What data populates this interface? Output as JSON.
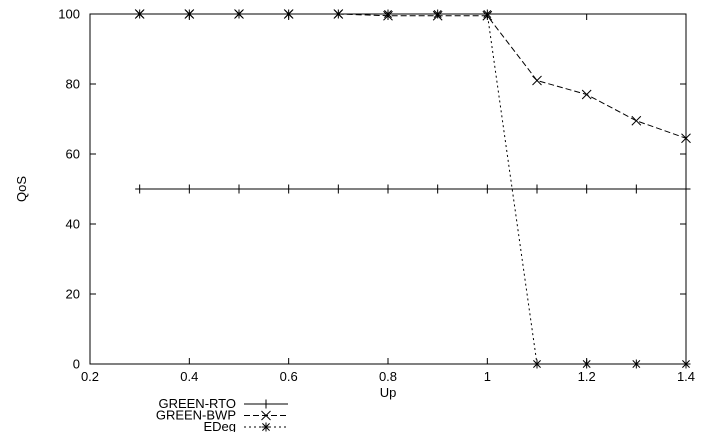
{
  "chart_data": {
    "type": "line",
    "title": "",
    "xlabel": "Up",
    "ylabel": "QoS",
    "xlim": [
      0.2,
      1.4
    ],
    "ylim": [
      0,
      100
    ],
    "xticks": [
      "0.2",
      "0.4",
      "0.6",
      "0.8",
      "1",
      "1.2",
      "1.4"
    ],
    "yticks": [
      "0",
      "20",
      "40",
      "60",
      "80",
      "100"
    ],
    "grid": false,
    "legend_position": "bottom-left outside",
    "series": [
      {
        "name": "GREEN-RTO",
        "marker": "plus",
        "line_style": "solid",
        "color": "#000000",
        "x": [
          0.3,
          0.4,
          0.5,
          0.6,
          0.7,
          0.8,
          0.9,
          1.0,
          1.1,
          1.2,
          1.3,
          1.4
        ],
        "y": [
          50,
          50,
          50,
          50,
          50,
          50,
          50,
          50,
          50,
          50,
          50,
          50
        ]
      },
      {
        "name": "GREEN-BWP",
        "marker": "cross",
        "line_style": "dashed",
        "color": "#000000",
        "x": [
          0.3,
          0.4,
          0.5,
          0.6,
          0.7,
          0.8,
          0.9,
          1.0,
          1.1,
          1.2,
          1.3,
          1.4
        ],
        "y": [
          100,
          100,
          100,
          100,
          100,
          99.5,
          99.5,
          99.5,
          81,
          77,
          69.5,
          64.5
        ]
      },
      {
        "name": "EDeg",
        "marker": "star",
        "line_style": "dotted",
        "color": "#000000",
        "x": [
          0.3,
          0.4,
          0.5,
          0.6,
          0.7,
          0.8,
          0.9,
          1.0,
          1.1,
          1.2,
          1.3,
          1.4
        ],
        "y": [
          100,
          100,
          100,
          100,
          100,
          100,
          100,
          100,
          0,
          0,
          0,
          0
        ]
      }
    ]
  }
}
